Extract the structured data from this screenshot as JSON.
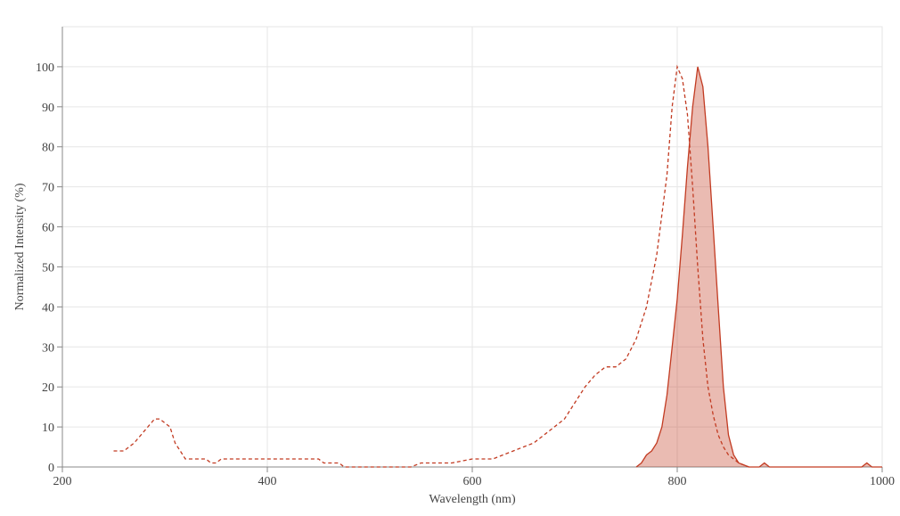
{
  "chart_data": {
    "type": "line",
    "x_label": "Wavelength (nm)",
    "y_label": "Normalized Intensity (%)",
    "xlim": [
      200,
      1000
    ],
    "xticks": [
      200,
      400,
      600,
      800,
      1000
    ],
    "ylim": [
      0,
      110
    ],
    "yticks": [
      0,
      10,
      20,
      30,
      40,
      50,
      60,
      70,
      80,
      90,
      100
    ],
    "grid": true,
    "series": [
      {
        "color": "#c23b22",
        "dashed": true,
        "fill": false,
        "x": [
          250,
          260,
          270,
          280,
          290,
          295,
          300,
          305,
          310,
          315,
          320,
          330,
          340,
          345,
          350,
          355,
          360,
          380,
          400,
          420,
          440,
          450,
          455,
          470,
          475,
          500,
          540,
          550,
          580,
          600,
          620,
          630,
          640,
          650,
          660,
          670,
          680,
          690,
          700,
          710,
          720,
          730,
          740,
          750,
          760,
          770,
          780,
          790,
          795,
          800,
          805,
          810,
          815,
          820,
          825,
          830,
          835,
          840,
          845,
          850,
          855,
          860,
          870
        ],
        "values": [
          4,
          4,
          6,
          9,
          12,
          12,
          11,
          10,
          6,
          4,
          2,
          2,
          2,
          1,
          1,
          2,
          2,
          2,
          2,
          2,
          2,
          2,
          1,
          1,
          0,
          0,
          0,
          1,
          1,
          2,
          2,
          3,
          4,
          5,
          6,
          8,
          10,
          12,
          16,
          20,
          23,
          25,
          25,
          27,
          32,
          40,
          53,
          73,
          90,
          100,
          97,
          88,
          70,
          50,
          32,
          20,
          13,
          8,
          5,
          3,
          2,
          1,
          0
        ]
      },
      {
        "color": "#c23b22",
        "dashed": false,
        "fill": true,
        "x": [
          760,
          765,
          770,
          775,
          780,
          785,
          790,
          795,
          800,
          805,
          810,
          815,
          820,
          825,
          830,
          835,
          840,
          845,
          850,
          855,
          860,
          870,
          880,
          885,
          890,
          900,
          950,
          980,
          985,
          990,
          1000
        ],
        "values": [
          0,
          1,
          3,
          4,
          6,
          10,
          18,
          30,
          42,
          58,
          75,
          90,
          100,
          95,
          80,
          60,
          40,
          20,
          8,
          3,
          1,
          0,
          0,
          1,
          0,
          0,
          0,
          0,
          1,
          0,
          0
        ]
      }
    ]
  }
}
